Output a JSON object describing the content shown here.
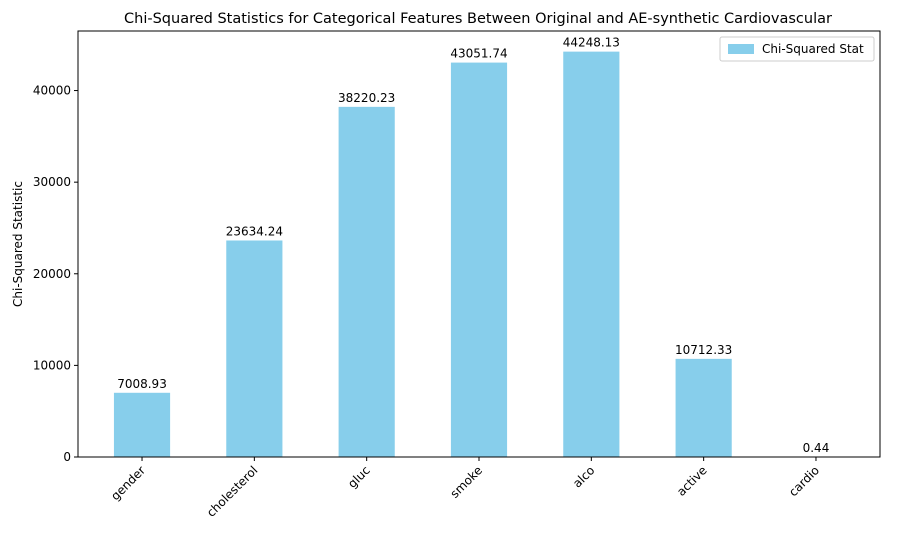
{
  "chart_data": {
    "type": "bar",
    "title": "Chi-Squared Statistics for Categorical Features Between Original and AE-synthetic Cardiovascular",
    "xlabel": "",
    "ylabel": "Chi-Squared Statistic",
    "categories": [
      "gender",
      "cholesterol",
      "gluc",
      "smoke",
      "alco",
      "active",
      "cardio"
    ],
    "series": [
      {
        "name": "Chi-Squared Stat",
        "color": "#87CEEB",
        "values": [
          7008.93,
          23634.24,
          38220.23,
          43051.74,
          44248.13,
          10712.33,
          0.44
        ],
        "labels": [
          "7008.93",
          "23634.24",
          "38220.23",
          "43051.74",
          "44248.13",
          "10712.33",
          "0.44"
        ]
      }
    ],
    "ylim": [
      0,
      46500
    ],
    "yticks": [
      0,
      10000,
      20000,
      30000,
      40000
    ],
    "ytick_labels": [
      "0",
      "10000",
      "20000",
      "30000",
      "40000"
    ],
    "xtick_rotation_deg": 45,
    "grid": false,
    "legend_position": "top-right"
  }
}
